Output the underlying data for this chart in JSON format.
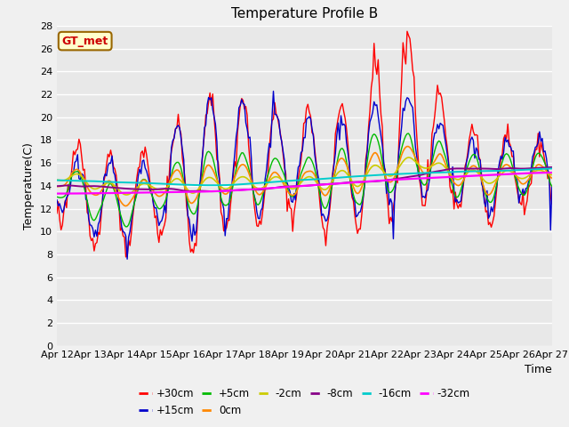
{
  "title": "Temperature Profile B",
  "xlabel": "Time",
  "ylabel": "Temperature(C)",
  "ylim": [
    0,
    28
  ],
  "yticks": [
    0,
    2,
    4,
    6,
    8,
    10,
    12,
    14,
    16,
    18,
    20,
    22,
    24,
    26,
    28
  ],
  "date_labels": [
    "Apr 12",
    "Apr 13",
    "Apr 14",
    "Apr 15",
    "Apr 16",
    "Apr 17",
    "Apr 18",
    "Apr 19",
    "Apr 20",
    "Apr 21",
    "Apr 22",
    "Apr 23",
    "Apr 24",
    "Apr 25",
    "Apr 26",
    "Apr 27"
  ],
  "annotation_text": "GT_met",
  "bg_color": "#e8e8e8",
  "fig_color": "#f0f0f0",
  "series_colors": {
    "+30cm": "#ff0000",
    "+15cm": "#0000cc",
    "+5cm": "#00bb00",
    "0cm": "#ff8800",
    "-2cm": "#cccc00",
    "-8cm": "#880088",
    "-16cm": "#00cccc",
    "-32cm": "#ff00ff"
  },
  "series_order": [
    "+30cm",
    "+15cm",
    "+5cm",
    "0cm",
    "-2cm",
    "-8cm",
    "-16cm",
    "-32cm"
  ],
  "legend_ncol": 6,
  "lw_surface": 1.0,
  "lw_deep": 1.2
}
